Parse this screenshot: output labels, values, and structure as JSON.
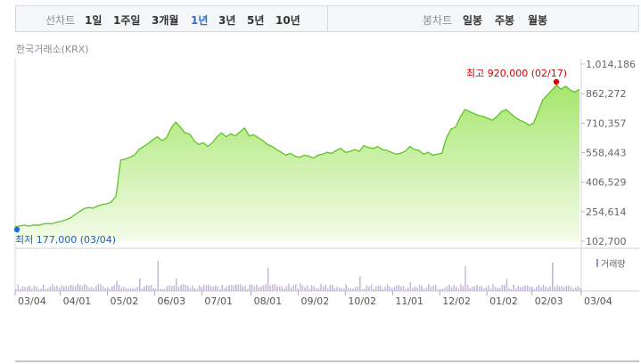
{
  "toolbar": {
    "line_chart_label": "선차트",
    "periods": [
      "1일",
      "1주일",
      "3개월",
      "1년",
      "3년",
      "5년",
      "10년"
    ],
    "active_period": "1년",
    "candle_chart_label": "봉차트",
    "candle_periods": [
      "일봉",
      "주봉",
      "월봉"
    ]
  },
  "source_label": "한국거래소(KRX)",
  "chart_data": {
    "type": "area",
    "ylim": [
      102700,
      1014186
    ],
    "y_ticks": [
      "1,014,186",
      "862,272",
      "710,357",
      "558,443",
      "406,529",
      "254,614",
      "102,700"
    ],
    "x_ticks": [
      "03/04",
      "04/01",
      "05/02",
      "06/03",
      "07/01",
      "08/01",
      "09/02",
      "10/02",
      "11/01",
      "12/02",
      "01/02",
      "02/03",
      "03/04"
    ],
    "max_label": "최고 920,000 (02/17)",
    "min_label": "최저 177,000 (03/04)",
    "volume_label": "거래량",
    "price_series": [
      [
        0,
        177000
      ],
      [
        2,
        181000
      ],
      [
        4,
        185000
      ],
      [
        6,
        180000
      ],
      [
        8,
        186000
      ],
      [
        10,
        184000
      ],
      [
        12,
        190000
      ],
      [
        14,
        194000
      ],
      [
        16,
        192000
      ],
      [
        18,
        200000
      ],
      [
        20,
        205000
      ],
      [
        22,
        212000
      ],
      [
        24,
        222000
      ],
      [
        26,
        238000
      ],
      [
        28,
        255000
      ],
      [
        30,
        270000
      ],
      [
        32,
        276000
      ],
      [
        34,
        273000
      ],
      [
        36,
        284000
      ],
      [
        38,
        292000
      ],
      [
        40,
        295000
      ],
      [
        42,
        305000
      ],
      [
        44,
        335000
      ],
      [
        45,
        430000
      ],
      [
        46,
        520000
      ],
      [
        48,
        525000
      ],
      [
        50,
        535000
      ],
      [
        52,
        545000
      ],
      [
        54,
        575000
      ],
      [
        56,
        590000
      ],
      [
        58,
        605000
      ],
      [
        60,
        625000
      ],
      [
        62,
        640000
      ],
      [
        64,
        620000
      ],
      [
        66,
        635000
      ],
      [
        68,
        685000
      ],
      [
        70,
        715000
      ],
      [
        72,
        690000
      ],
      [
        74,
        660000
      ],
      [
        76,
        655000
      ],
      [
        78,
        620000
      ],
      [
        80,
        600000
      ],
      [
        82,
        610000
      ],
      [
        84,
        590000
      ],
      [
        86,
        610000
      ],
      [
        88,
        640000
      ],
      [
        90,
        660000
      ],
      [
        92,
        640000
      ],
      [
        94,
        655000
      ],
      [
        96,
        645000
      ],
      [
        98,
        665000
      ],
      [
        100,
        685000
      ],
      [
        102,
        645000
      ],
      [
        104,
        650000
      ],
      [
        106,
        635000
      ],
      [
        108,
        620000
      ],
      [
        110,
        600000
      ],
      [
        112,
        590000
      ],
      [
        114,
        575000
      ],
      [
        116,
        560000
      ],
      [
        118,
        545000
      ],
      [
        120,
        555000
      ],
      [
        122,
        540000
      ],
      [
        124,
        535000
      ],
      [
        126,
        545000
      ],
      [
        128,
        540000
      ],
      [
        130,
        530000
      ],
      [
        132,
        545000
      ],
      [
        134,
        550000
      ],
      [
        136,
        560000
      ],
      [
        138,
        555000
      ],
      [
        140,
        570000
      ],
      [
        142,
        580000
      ],
      [
        144,
        560000
      ],
      [
        146,
        565000
      ],
      [
        148,
        575000
      ],
      [
        150,
        565000
      ],
      [
        152,
        595000
      ],
      [
        154,
        585000
      ],
      [
        156,
        580000
      ],
      [
        158,
        590000
      ],
      [
        160,
        575000
      ],
      [
        162,
        570000
      ],
      [
        164,
        560000
      ],
      [
        166,
        550000
      ],
      [
        168,
        555000
      ],
      [
        170,
        565000
      ],
      [
        172,
        590000
      ],
      [
        174,
        575000
      ],
      [
        176,
        570000
      ],
      [
        178,
        550000
      ],
      [
        180,
        560000
      ],
      [
        182,
        545000
      ],
      [
        184,
        550000
      ],
      [
        186,
        555000
      ],
      [
        188,
        635000
      ],
      [
        190,
        680000
      ],
      [
        192,
        690000
      ],
      [
        194,
        740000
      ],
      [
        196,
        780000
      ],
      [
        198,
        770000
      ],
      [
        200,
        760000
      ],
      [
        202,
        750000
      ],
      [
        204,
        745000
      ],
      [
        206,
        735000
      ],
      [
        208,
        725000
      ],
      [
        210,
        745000
      ],
      [
        212,
        770000
      ],
      [
        214,
        780000
      ],
      [
        216,
        760000
      ],
      [
        218,
        740000
      ],
      [
        220,
        725000
      ],
      [
        222,
        715000
      ],
      [
        224,
        700000
      ],
      [
        226,
        710000
      ],
      [
        228,
        770000
      ],
      [
        230,
        830000
      ],
      [
        232,
        855000
      ],
      [
        234,
        880000
      ],
      [
        236,
        905000
      ],
      [
        238,
        885000
      ],
      [
        240,
        900000
      ],
      [
        242,
        880000
      ],
      [
        244,
        870000
      ],
      [
        246,
        885000
      ]
    ]
  }
}
